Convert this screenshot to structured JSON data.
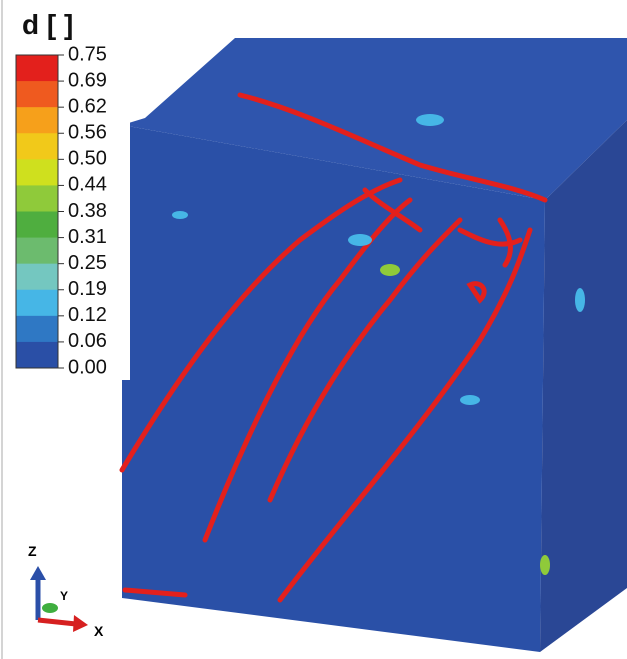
{
  "legend": {
    "title": "d [ ]",
    "ticks": [
      "0.75",
      "0.69",
      "0.62",
      "0.56",
      "0.50",
      "0.44",
      "0.38",
      "0.31",
      "0.25",
      "0.19",
      "0.12",
      "0.06",
      "0.00"
    ],
    "colors": [
      "#e3201c",
      "#ef5a1f",
      "#f6a01b",
      "#f1c91a",
      "#cfe01e",
      "#8fca3a",
      "#4fae3f",
      "#6cbb6e",
      "#74c7c0",
      "#46b6e6",
      "#2f78c4",
      "#2a4fa6"
    ]
  },
  "axes_triad": {
    "z": "Z",
    "y": "Y",
    "x": "X"
  }
}
